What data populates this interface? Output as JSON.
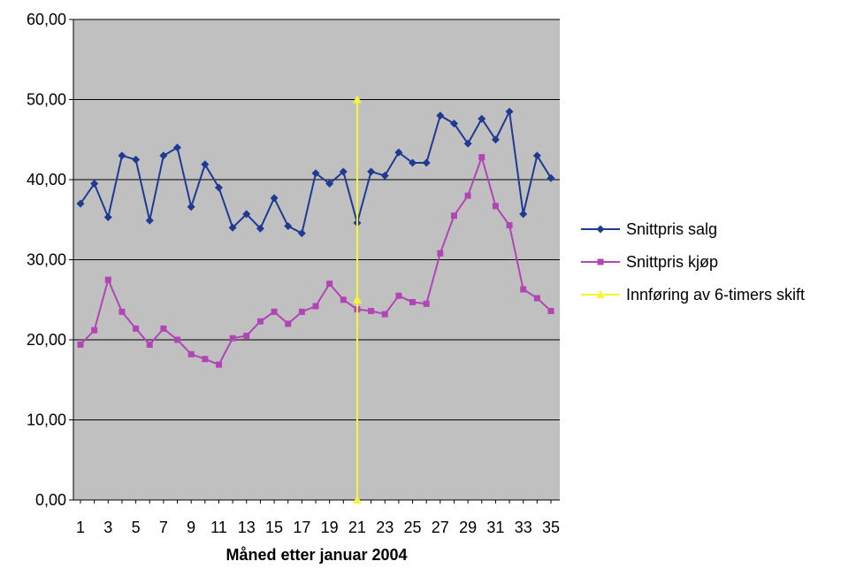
{
  "chart_data": {
    "type": "line",
    "title": "",
    "xlabel": "Måned etter januar 2004",
    "ylabel": "",
    "ylim": [
      0,
      60
    ],
    "xlim": [
      1,
      35
    ],
    "y_ticks": [
      "0,00",
      "10,00",
      "20,00",
      "30,00",
      "40,00",
      "50,00",
      "60,00"
    ],
    "x_ticks": [
      "1",
      "3",
      "5",
      "7",
      "9",
      "11",
      "13",
      "15",
      "17",
      "19",
      "21",
      "23",
      "25",
      "27",
      "29",
      "31",
      "33",
      "35"
    ],
    "grid": "horizontal",
    "plot_background": "#c0c0c0",
    "legend_position": "right",
    "x": [
      1,
      2,
      3,
      4,
      5,
      6,
      7,
      8,
      9,
      10,
      11,
      12,
      13,
      14,
      15,
      16,
      17,
      18,
      19,
      20,
      21,
      22,
      23,
      24,
      25,
      26,
      27,
      28,
      29,
      30,
      31,
      32,
      33,
      34,
      35
    ],
    "series": [
      {
        "name": "Snittpris salg",
        "color": "#1f3a93",
        "marker": "diamond",
        "values": [
          37.0,
          39.5,
          35.3,
          43.0,
          42.5,
          34.9,
          43.0,
          44.0,
          36.6,
          41.9,
          39.0,
          34.0,
          35.7,
          33.9,
          37.7,
          34.2,
          33.3,
          40.8,
          39.5,
          41.0,
          34.6,
          41.0,
          40.5,
          43.4,
          42.1,
          42.1,
          48.0,
          47.0,
          44.5,
          47.6,
          45.0,
          48.5,
          35.7,
          43.0,
          40.2
        ]
      },
      {
        "name": "Snittpris kjøp",
        "color": "#b145b5",
        "marker": "square",
        "values": [
          19.4,
          21.2,
          27.5,
          23.5,
          21.4,
          19.4,
          21.4,
          20.0,
          18.2,
          17.6,
          16.9,
          20.2,
          20.5,
          22.3,
          23.5,
          22.0,
          23.5,
          24.2,
          27.0,
          25.0,
          23.8,
          23.6,
          23.2,
          25.5,
          24.7,
          24.5,
          30.8,
          35.5,
          38.0,
          42.8,
          36.7,
          34.3,
          26.3,
          25.2,
          23.6
        ]
      },
      {
        "name": "Innføring av 6-timers skift",
        "color": "#f5f53a",
        "marker": "triangle",
        "points": [
          [
            21,
            50.0
          ],
          [
            21,
            25.0
          ],
          [
            21,
            0.0
          ]
        ]
      }
    ]
  }
}
